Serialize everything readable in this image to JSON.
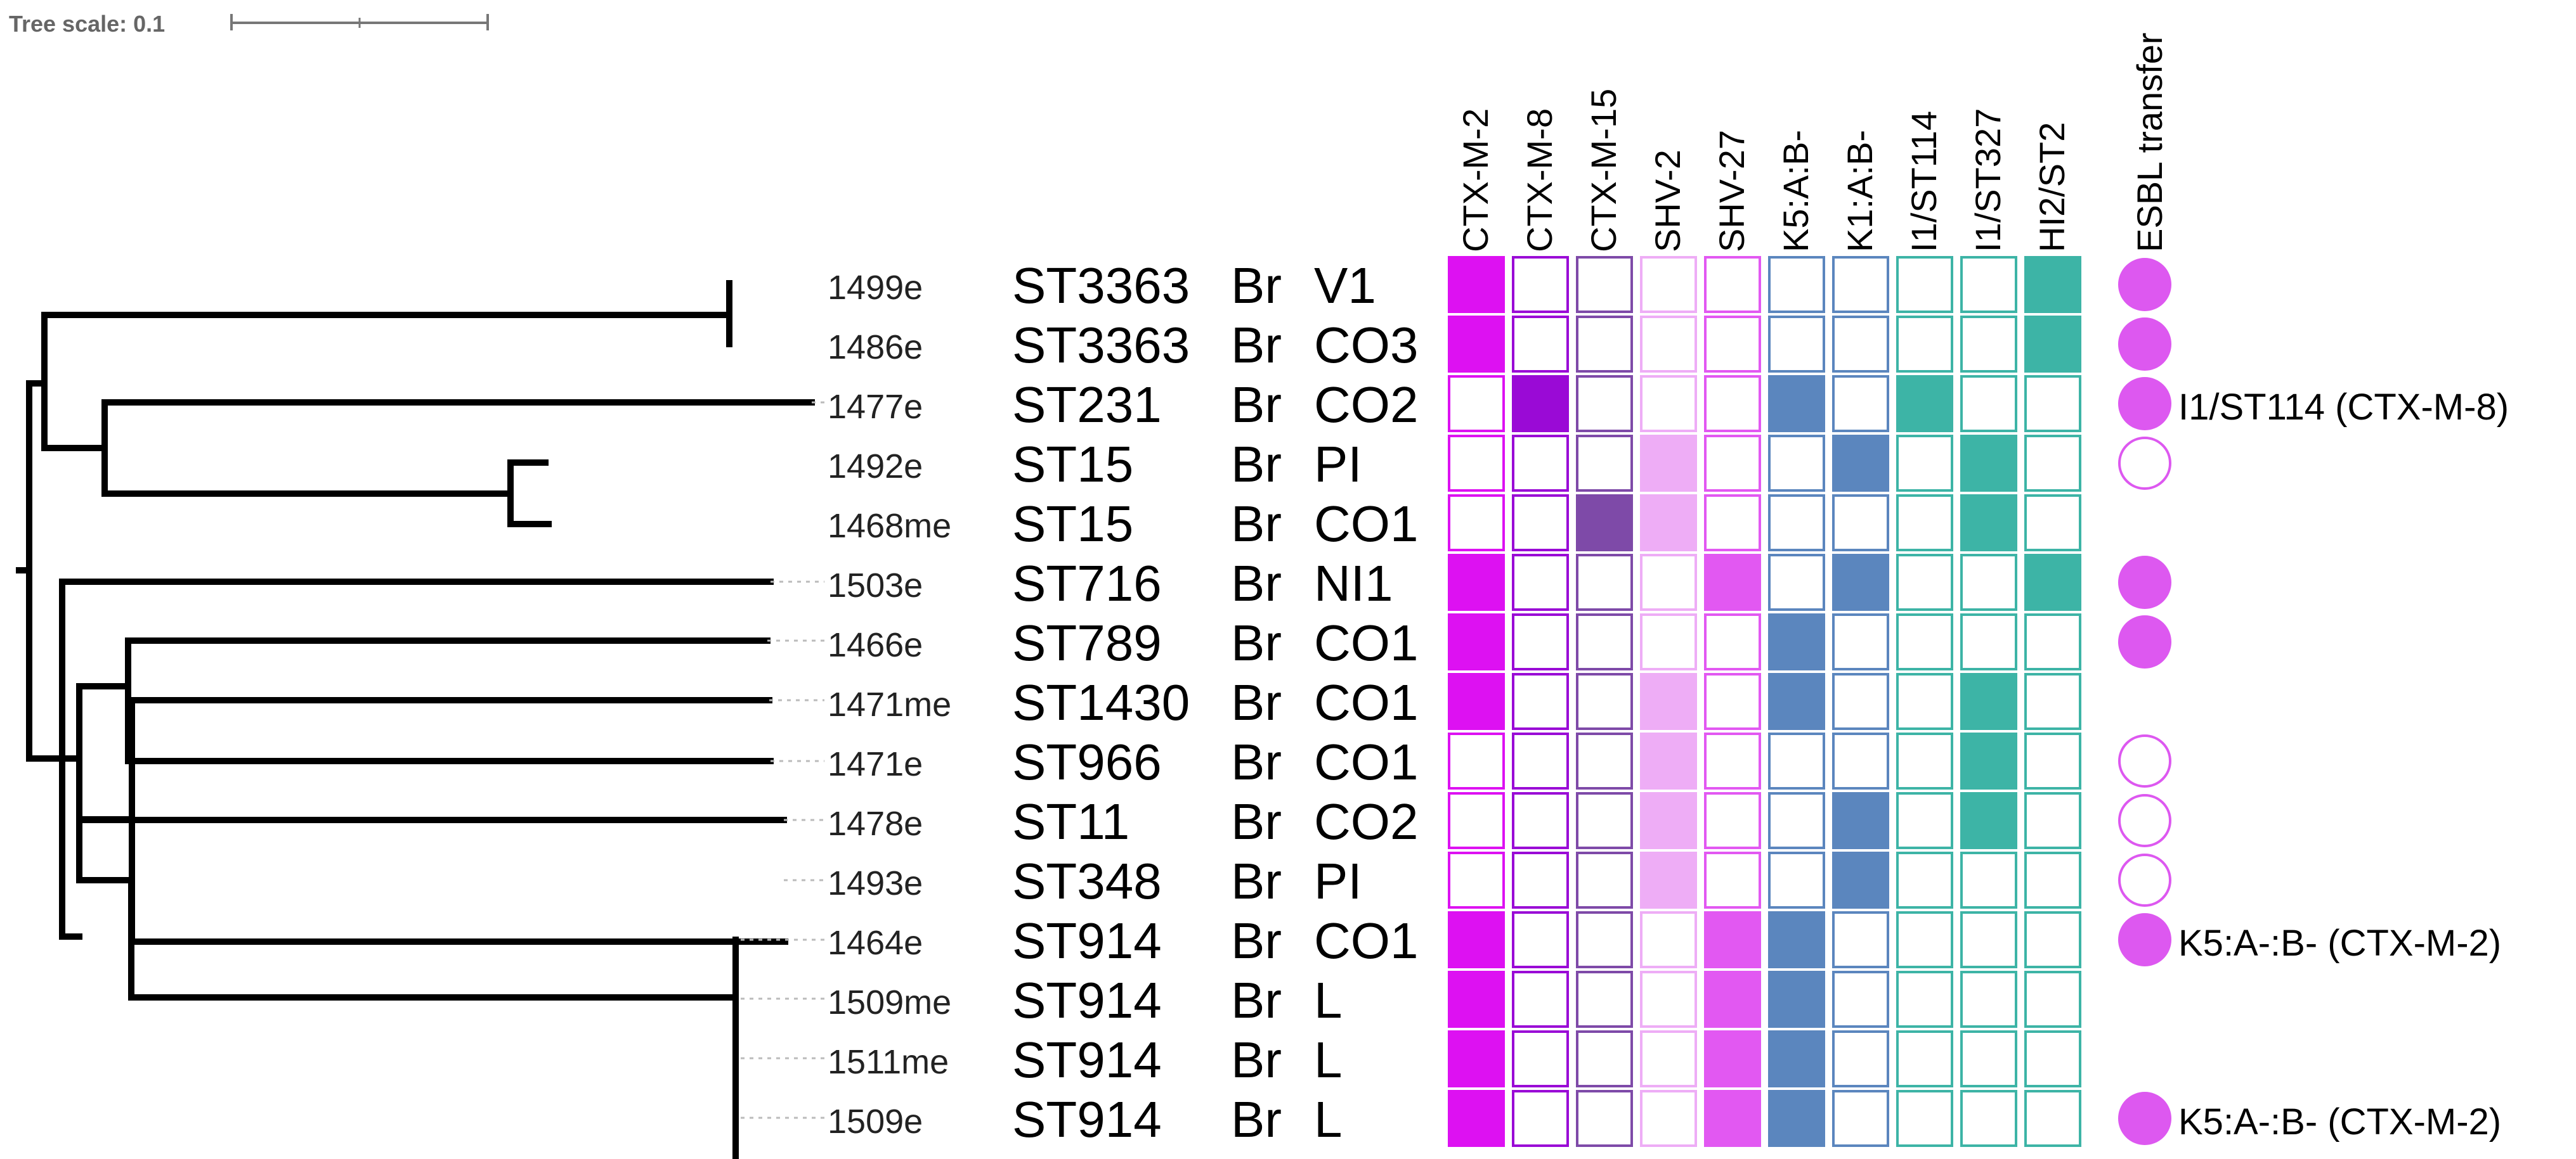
{
  "tree_scale": {
    "label": "Tree scale: 0.1"
  },
  "columns": [
    {
      "label": "CTX-M-2",
      "color": "#dd11f2",
      "group": "ctx"
    },
    {
      "label": "CTX-M-8",
      "color": "#9a0ad6",
      "group": "ctx"
    },
    {
      "label": "CTX-M-15",
      "color": "#7e4aa8",
      "group": "ctx"
    },
    {
      "label": "SHV-2",
      "color": "#eeadf6",
      "group": "shv"
    },
    {
      "label": "SHV-27",
      "color": "#e258f2",
      "group": "shv"
    },
    {
      "label": "K5:A:B-",
      "color": "#5b86be",
      "group": "plas"
    },
    {
      "label": "K1:A:B-",
      "color": "#5b86be",
      "group": "plas"
    },
    {
      "label": "I1/ST114",
      "color": "#3db4a6",
      "group": "inc"
    },
    {
      "label": "I1/ST327",
      "color": "#3db4a6",
      "group": "inc"
    },
    {
      "label": "HI2/ST2",
      "color": "#3db4a6",
      "group": "inc"
    }
  ],
  "esbl_header": "ESBL transfer",
  "esbl_color": "#dd58f0",
  "rows": [
    {
      "id": "1499e",
      "st": "ST3363",
      "br": "Br",
      "site": "V1",
      "cells": [
        1,
        0,
        0,
        0,
        0,
        0,
        0,
        0,
        0,
        1
      ],
      "esbl": "filled",
      "note": ""
    },
    {
      "id": "1486e",
      "st": "ST3363",
      "br": "Br",
      "site": "CO3",
      "cells": [
        1,
        0,
        0,
        0,
        0,
        0,
        0,
        0,
        0,
        1
      ],
      "esbl": "filled",
      "note": ""
    },
    {
      "id": "1477e",
      "st": "ST231",
      "br": "Br",
      "site": "CO2",
      "cells": [
        0,
        1,
        0,
        0,
        0,
        1,
        0,
        1,
        0,
        0
      ],
      "esbl": "filled",
      "note": "I1/ST114 (CTX-M-8)"
    },
    {
      "id": "1492e",
      "st": "ST15",
      "br": "Br",
      "site": "PI",
      "cells": [
        0,
        0,
        0,
        1,
        0,
        0,
        1,
        0,
        1,
        0
      ],
      "esbl": "empty",
      "note": ""
    },
    {
      "id": "1468me",
      "st": "ST15",
      "br": "Br",
      "site": "CO1",
      "cells": [
        0,
        0,
        1,
        1,
        0,
        0,
        0,
        0,
        1,
        0
      ],
      "esbl": "none",
      "note": ""
    },
    {
      "id": "1503e",
      "st": "ST716",
      "br": "Br",
      "site": "NI1",
      "cells": [
        1,
        0,
        0,
        0,
        1,
        0,
        1,
        0,
        0,
        1
      ],
      "esbl": "filled",
      "note": ""
    },
    {
      "id": "1466e",
      "st": "ST789",
      "br": "Br",
      "site": "CO1",
      "cells": [
        1,
        0,
        0,
        0,
        0,
        1,
        0,
        0,
        0,
        0
      ],
      "esbl": "filled",
      "note": ""
    },
    {
      "id": "1471me",
      "st": "ST1430",
      "br": "Br",
      "site": "CO1",
      "cells": [
        1,
        0,
        0,
        1,
        0,
        1,
        0,
        0,
        1,
        0
      ],
      "esbl": "none",
      "note": ""
    },
    {
      "id": "1471e",
      "st": "ST966",
      "br": "Br",
      "site": "CO1",
      "cells": [
        0,
        0,
        0,
        1,
        0,
        0,
        0,
        0,
        1,
        0
      ],
      "esbl": "empty",
      "note": ""
    },
    {
      "id": "1478e",
      "st": "ST11",
      "br": "Br",
      "site": "CO2",
      "cells": [
        0,
        0,
        0,
        1,
        0,
        0,
        1,
        0,
        1,
        0
      ],
      "esbl": "empty",
      "note": ""
    },
    {
      "id": "1493e",
      "st": "ST348",
      "br": "Br",
      "site": "PI",
      "cells": [
        0,
        0,
        0,
        1,
        0,
        0,
        1,
        0,
        0,
        0
      ],
      "esbl": "empty",
      "note": ""
    },
    {
      "id": "1464e",
      "st": "ST914",
      "br": "Br",
      "site": "CO1",
      "cells": [
        1,
        0,
        0,
        0,
        1,
        1,
        0,
        0,
        0,
        0
      ],
      "esbl": "filled",
      "note": "K5:A-:B- (CTX-M-2)"
    },
    {
      "id": "1509me",
      "st": "ST914",
      "br": "Br",
      "site": "L",
      "cells": [
        1,
        0,
        0,
        0,
        1,
        1,
        0,
        0,
        0,
        0
      ],
      "esbl": "none",
      "note": ""
    },
    {
      "id": "1511me",
      "st": "ST914",
      "br": "Br",
      "site": "L",
      "cells": [
        1,
        0,
        0,
        0,
        1,
        1,
        0,
        0,
        0,
        0
      ],
      "esbl": "none",
      "note": ""
    },
    {
      "id": "1509e",
      "st": "ST914",
      "br": "Br",
      "site": "L",
      "cells": [
        1,
        0,
        0,
        0,
        1,
        1,
        0,
        0,
        0,
        0
      ],
      "esbl": "filled",
      "note": "K5:A-:B- (CTX-M-2)"
    }
  ]
}
